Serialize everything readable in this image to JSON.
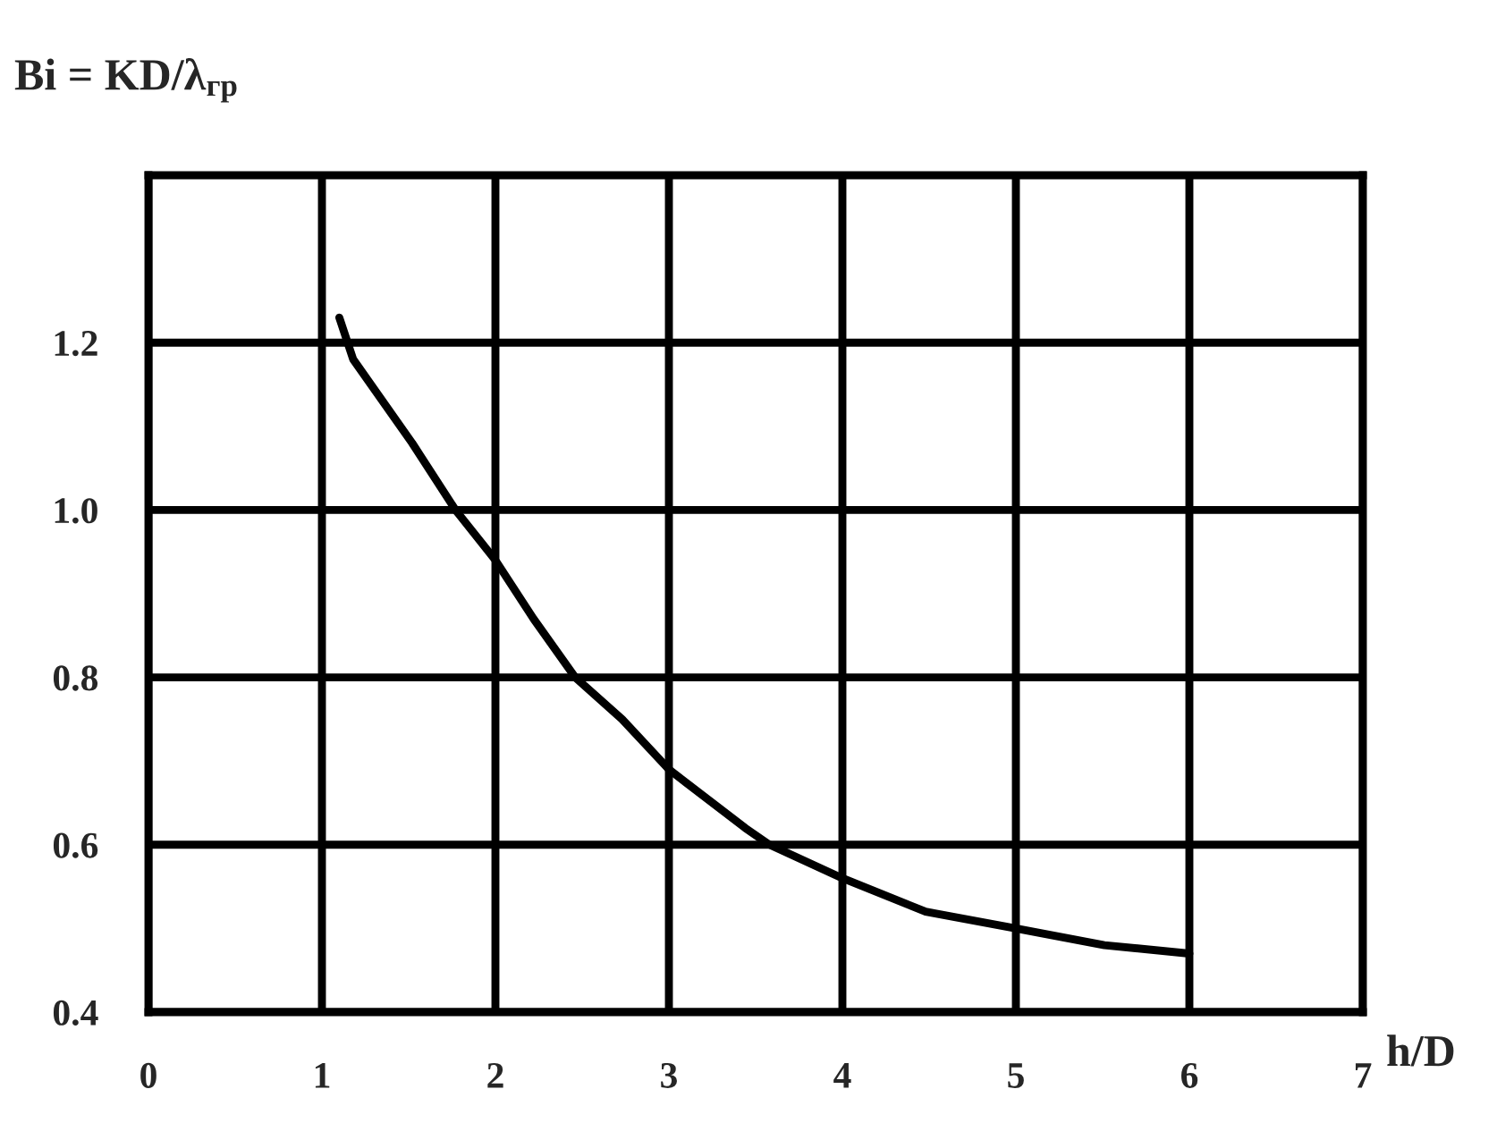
{
  "chart_data": {
    "type": "line",
    "ylabel": "Bi = KD/λ$_{гр}$",
    "xlabel": "h/D",
    "x": [
      1.1,
      1.18,
      1.52,
      1.77,
      2.0,
      2.22,
      2.46,
      2.73,
      3.0,
      3.44,
      3.58,
      4.0,
      4.48,
      5.0,
      5.51,
      6.0
    ],
    "series": [
      {
        "color": "#000000",
        "values": [
          1.23,
          1.18,
          1.08,
          1.0,
          0.94,
          0.87,
          0.8,
          0.75,
          0.69,
          0.62,
          0.6,
          0.56,
          0.52,
          0.5,
          0.48,
          0.47
        ]
      }
    ],
    "xlim": [
      0,
      7
    ],
    "xticks": [
      0,
      1,
      2,
      3,
      4,
      5,
      6,
      7
    ],
    "ylim": [
      0.4,
      1.4
    ],
    "yticks": [
      0.4,
      0.6,
      0.8,
      {
        "value": 1,
        "label": "1.0"
      },
      1.2
    ],
    "grid": true,
    "marker": "none",
    "line_style": "solid"
  }
}
